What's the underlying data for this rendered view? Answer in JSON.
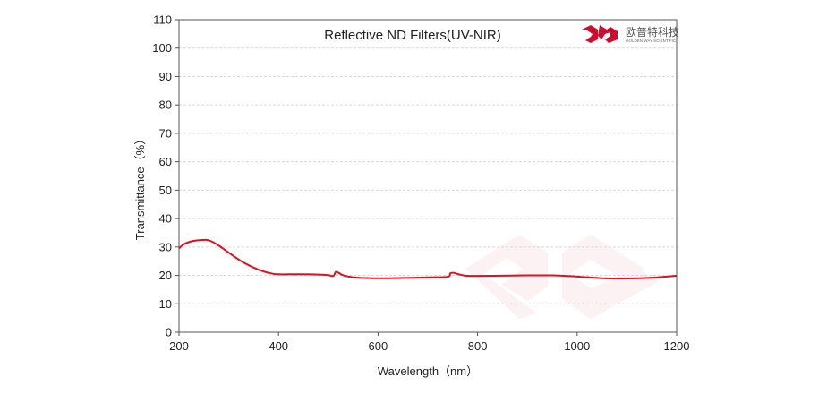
{
  "chart_data": {
    "type": "line",
    "title": "Reflective ND Filters(UV-NIR)",
    "xlabel": "Wavelength（nm）",
    "ylabel": "Transmittance（%）",
    "xlim": [
      200,
      1200
    ],
    "ylim": [
      0,
      110
    ],
    "xticks": [
      200,
      400,
      600,
      800,
      1000,
      1200
    ],
    "yticks": [
      0,
      10,
      20,
      30,
      40,
      50,
      60,
      70,
      80,
      90,
      100,
      110
    ],
    "grid": true,
    "series": [
      {
        "color": "#e0101e",
        "x": [
          200,
          210,
          225,
          240,
          255,
          265,
          280,
          300,
          330,
          360,
          385,
          400,
          420,
          450,
          480,
          500,
          510,
          515,
          520,
          528,
          540,
          560,
          600,
          650,
          700,
          740,
          745,
          752,
          760,
          775,
          800,
          850,
          900,
          950,
          1000,
          1050,
          1100,
          1150,
          1200
        ],
        "y": [
          29.5,
          31.0,
          32.0,
          32.4,
          32.5,
          32.0,
          30.5,
          28.0,
          24.5,
          22.0,
          20.7,
          20.4,
          20.4,
          20.4,
          20.3,
          20.1,
          19.8,
          21.2,
          21.0,
          20.2,
          19.6,
          19.2,
          19.0,
          19.1,
          19.3,
          19.5,
          20.7,
          20.9,
          20.5,
          19.9,
          19.8,
          19.9,
          20.0,
          20.0,
          19.6,
          19.0,
          18.9,
          19.2,
          19.9
        ]
      }
    ]
  },
  "watermark": {
    "company_cn": "欧普特科技",
    "company_en": "GOLDEN WAY SCIENTIFIC",
    "brand_color": "#c8102e"
  }
}
